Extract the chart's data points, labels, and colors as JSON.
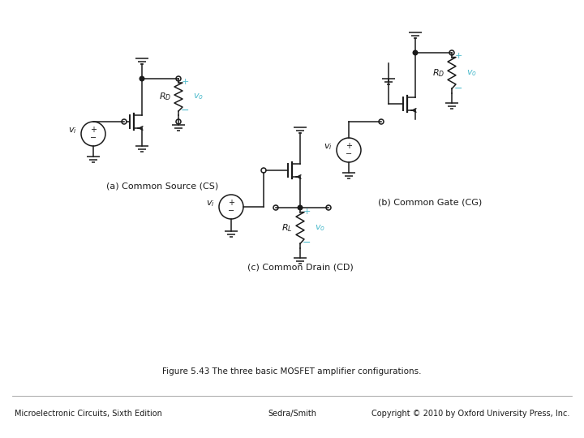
{
  "title": "Figure 5.43 The three basic MOSFET amplifier configurations.",
  "footer_left": "Microelectronic Circuits, Sixth Edition",
  "footer_center": "Sedra/Smith",
  "footer_right": "Copyright © 2010 by Oxford University Press, Inc.",
  "label_cs": "(a) Common Source (CS)",
  "label_cg": "(b) Common Gate (CG)",
  "label_cd": "(c) Common Drain (CD)",
  "cyan_color": "#4DBBCC",
  "black_color": "#1a1a1a",
  "bg_color": "#FFFFFF",
  "lw": 1.1,
  "title_fontsize": 7.5,
  "label_fontsize": 8,
  "footer_fontsize": 7,
  "vi_fontsize": 8,
  "rd_fontsize": 8
}
